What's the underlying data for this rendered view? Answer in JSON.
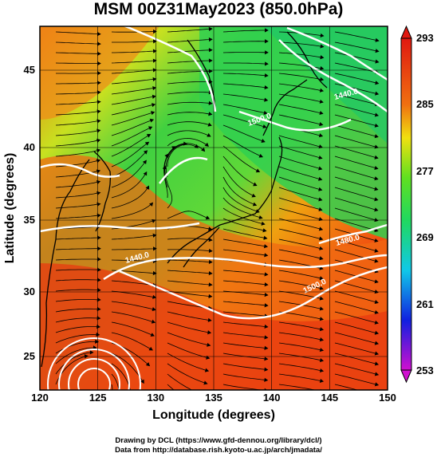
{
  "title": "MSM 00Z31May2023 (850.0hPa)",
  "xlabel": "Longitude (degrees)",
  "ylabel": "Latitude  (degrees)",
  "credit_line1": "Drawing by DCL (https://www.gfd-dennou.org/library/dcl/)",
  "credit_line2": "Data from http://database.rish.kyoto-u.ac.jp/arch/jmadata/",
  "x_ticks": [
    "120",
    "125",
    "130",
    "135",
    "140",
    "145",
    "150"
  ],
  "y_ticks": [
    "25",
    "30",
    "35",
    "40",
    "45"
  ],
  "colorbar_ticks": [
    "293",
    "285",
    "277",
    "269",
    "261",
    "253"
  ],
  "contour_labels": [
    "1440.0",
    "1500.0",
    "1440.0",
    "1500.0",
    "1520.0",
    "1480.0"
  ],
  "colors": {
    "cold": "#d010d0",
    "blue": "#1020e0",
    "cyan": "#10c8e8",
    "green": "#20d040",
    "yellow": "#e8f010",
    "orange": "#f07010",
    "red": "#e82010"
  },
  "map": {
    "lon_range": [
      120,
      150
    ],
    "lat_range": [
      22.4,
      47.6
    ],
    "variable_range": [
      253,
      293
    ],
    "cyclone_center": [
      132,
      39.5
    ],
    "typhoon_center": [
      123.5,
      23
    ]
  }
}
